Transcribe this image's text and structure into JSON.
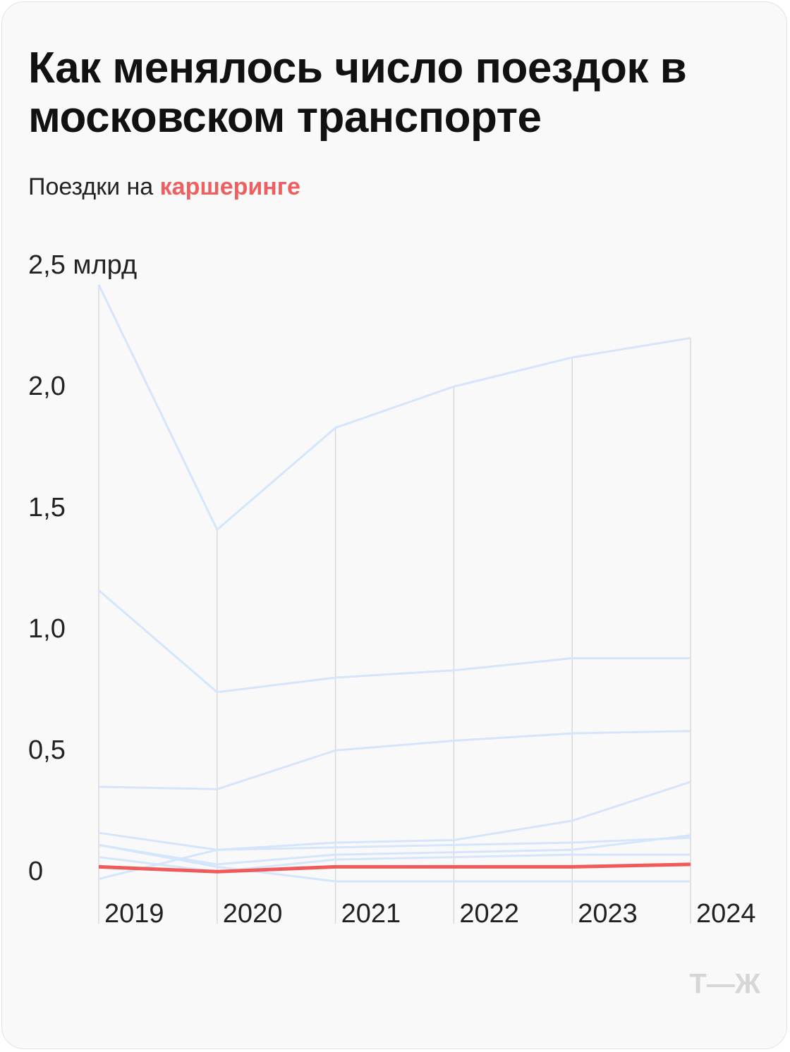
{
  "chart_data": {
    "type": "line",
    "title": "Как менялось число поездок в московском транспорте",
    "subtitle": "Поездки на",
    "logo": "Т—Ж",
    "categories": [
      "2019",
      "2020",
      "2021",
      "2022",
      "2023",
      "2024"
    ],
    "ylim": [
      0,
      2.5
    ],
    "yticks": [
      0,
      {
        "value": 0.5,
        "label": "0,5"
      },
      {
        "value": 1,
        "label": "1,0"
      },
      {
        "value": 1.5,
        "label": "1,5"
      },
      {
        "value": 2,
        "label": "2,0"
      },
      {
        "value": 2.5,
        "label": "2,5 млрд"
      }
    ],
    "series": [
      {
        "color": "#d5e5fb",
        "values": [
          2.46,
          1.45,
          1.87,
          2.04,
          2.16,
          2.24
        ]
      },
      {
        "color": "#d5e5fb",
        "values": [
          1.2,
          0.78,
          0.84,
          0.87,
          0.92,
          0.92
        ]
      },
      {
        "color": "#d5e5fb",
        "values": [
          0.39,
          0.38,
          0.54,
          0.58,
          0.61,
          0.62
        ]
      },
      {
        "color": "#d5e5fb",
        "values": [
          0.2,
          0.13,
          0.16,
          0.17,
          0.25,
          0.41
        ]
      },
      {
        "color": "#d5e5fb",
        "values": [
          0.15,
          0.07,
          0.11,
          0.12,
          0.13,
          0.19
        ]
      },
      {
        "color": "#d5e5fb",
        "values": [
          0.01,
          0.13,
          0.14,
          0.15,
          0.16,
          0.18
        ]
      },
      {
        "color": "#d5e5fb",
        "values": [
          0.1,
          0.04,
          0.09,
          0.1,
          0.11,
          0.11
        ]
      },
      {
        "color": "#d5e5fb",
        "values": [
          0.15,
          0.06,
          0,
          0,
          0,
          0
        ]
      },
      {
        "name": "каршеринге",
        "color": "#ef5b5b",
        "values": [
          0.06,
          0.04,
          0.06,
          0.06,
          0.06,
          0.07
        ]
      }
    ]
  }
}
